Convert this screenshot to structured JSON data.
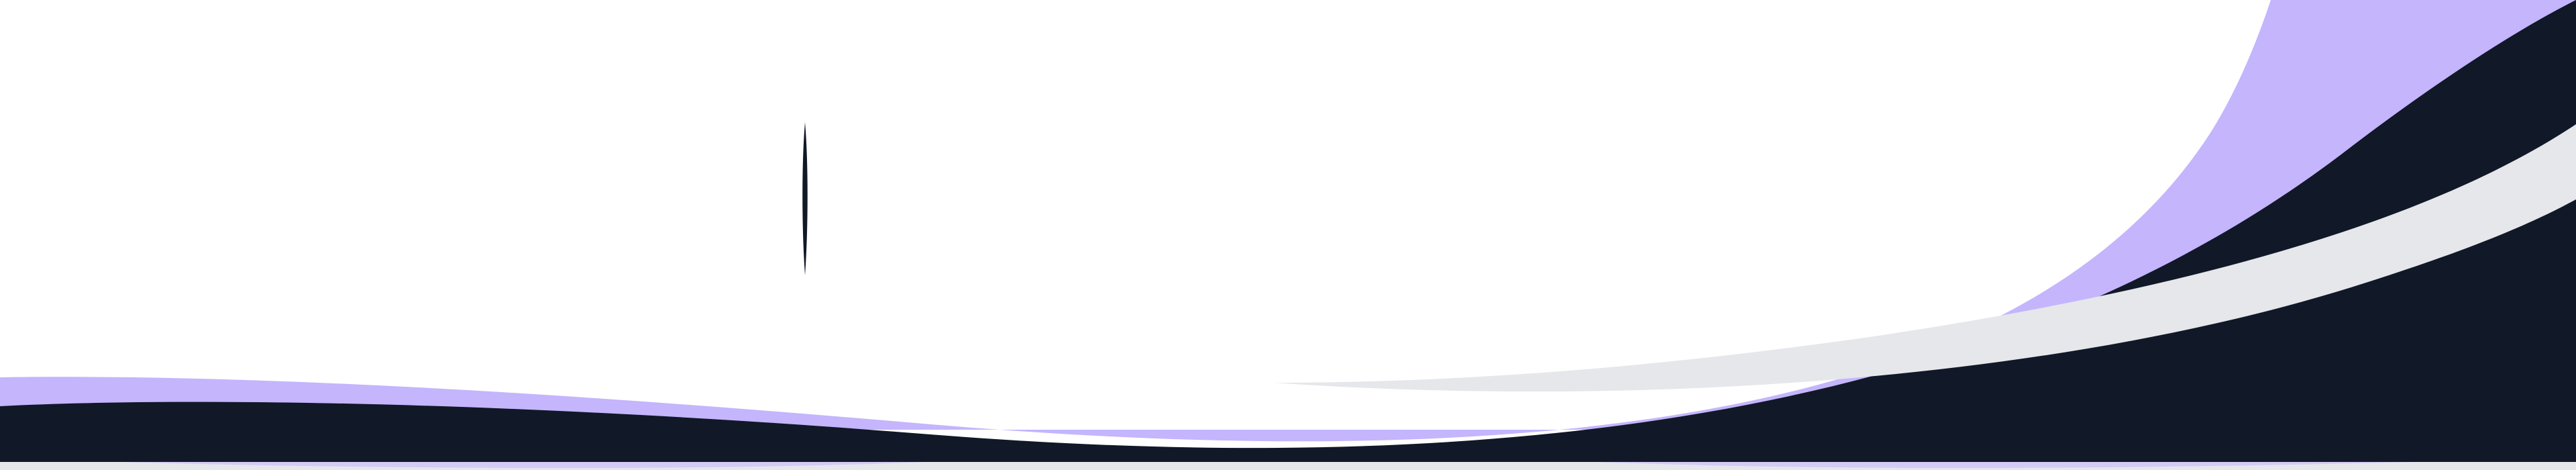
{
  "colors": {
    "background": "#ffffff",
    "accent_lavender": "#c4b5fd",
    "navy": "#111827",
    "light_gray": "#e5e7eb"
  },
  "icons": {
    "text_cursor": "text-cursor-icon"
  }
}
